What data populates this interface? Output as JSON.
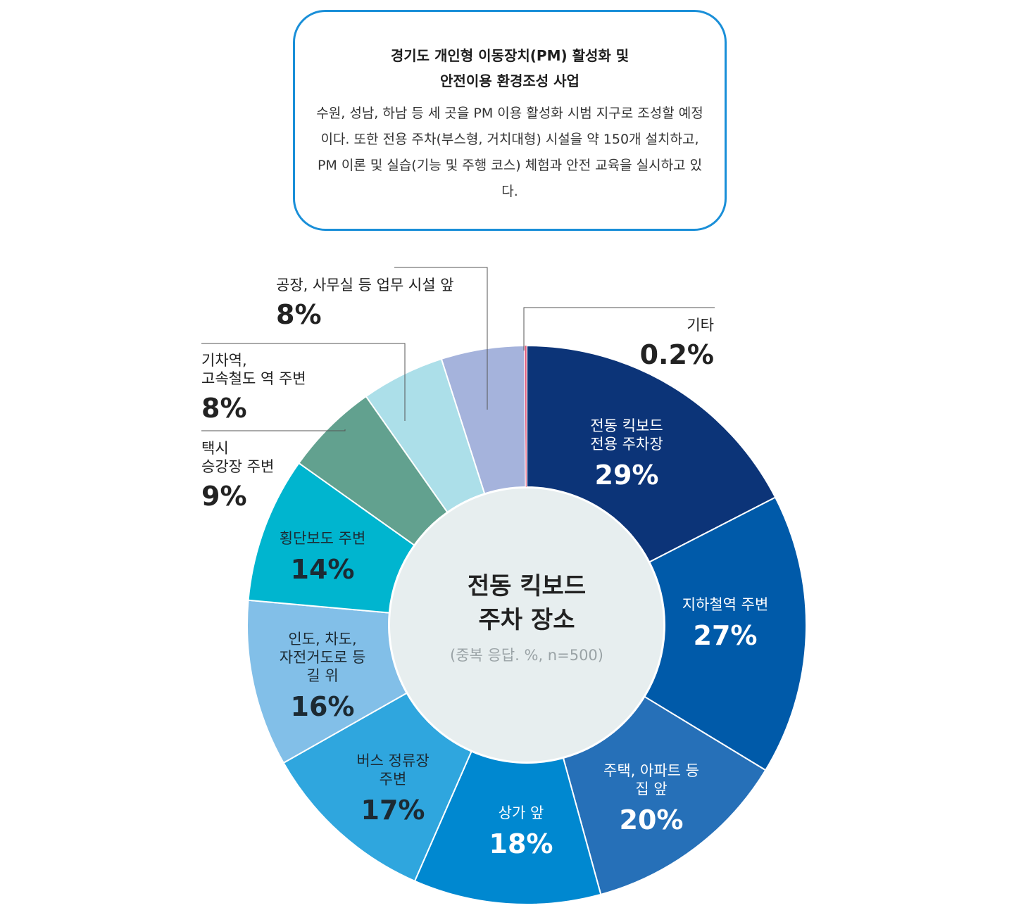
{
  "info": {
    "title_line1": "경기도 개인형 이동장치(PM) 활성화 및",
    "title_line2": "안전이용 환경조성 사업",
    "body": "수원, 성남, 하남 등 세 곳을 PM 이용 활성화 시범 지구로 조성할 예정이다. 또한 전용 주차(부스형, 거치대형) 시설을 약 150개 설치하고, PM 이론 및 실습(기능 및 주행 코스) 체험과 안전 교육을 실시하고 있다."
  },
  "chart_data": {
    "type": "pie",
    "title": "전동 킥보드 주차 장소",
    "subtitle": "(중복 응답. %, n=500)",
    "slices": [
      {
        "label_lines": [
          "전동 킥보드",
          "전용 주차장"
        ],
        "value": 29,
        "value_label": "29%",
        "color": "#0c3478"
      },
      {
        "label_lines": [
          "지하철역 주변"
        ],
        "value": 27,
        "value_label": "27%",
        "color": "#005aa9"
      },
      {
        "label_lines": [
          "주택, 아파트 등",
          "집 앞"
        ],
        "value": 20,
        "value_label": "20%",
        "color": "#2670b8"
      },
      {
        "label_lines": [
          "상가 앞"
        ],
        "value": 18,
        "value_label": "18%",
        "color": "#0088d0"
      },
      {
        "label_lines": [
          "버스 정류장",
          "주변"
        ],
        "value": 17,
        "value_label": "17%",
        "color": "#2fa6de"
      },
      {
        "label_lines": [
          "인도, 차도,",
          "자전거도로 등",
          "길 위"
        ],
        "value": 16,
        "value_label": "16%",
        "color": "#82bfe8"
      },
      {
        "label_lines": [
          "횡단보도 주변"
        ],
        "value": 14,
        "value_label": "14%",
        "color": "#00b5cf"
      },
      {
        "label_lines": [
          "택시",
          "승강장 주변"
        ],
        "value": 9,
        "value_label": "9%",
        "color": "#62a18f"
      },
      {
        "label_lines": [
          "기차역,",
          "고속철도 역 주변"
        ],
        "value": 8,
        "value_label": "8%",
        "color": "#acdfe9"
      },
      {
        "label_lines": [
          "공장, 사무실 등 업무 시설 앞"
        ],
        "value": 8,
        "value_label": "8%",
        "color": "#a5b3dc"
      },
      {
        "label_lines": [
          "기타"
        ],
        "value": 0.2,
        "value_label": "0.2%",
        "color": "#e05a7c"
      }
    ]
  }
}
